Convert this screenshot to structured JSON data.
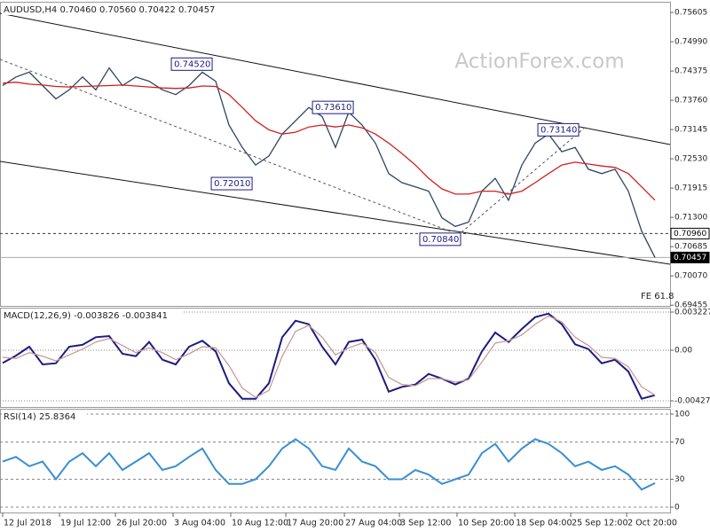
{
  "chart_data": [
    {
      "type": "line",
      "title": "AUDUSD,H4 0.70460 0.70560 0.70422 0.70457",
      "watermark": "ActionForex.com",
      "note": "FE 61.8",
      "xlim": [
        -0.2,
        50.13
      ],
      "ylim": [
        0.6944,
        0.7583
      ],
      "grid": false,
      "yticks": [
        0.75605,
        {
          "value": 0.7499,
          "label": "0.74990"
        },
        0.74375,
        {
          "value": 0.7376,
          "label": "0.73760"
        },
        0.73145,
        {
          "value": 0.7253,
          "label": "0.72530"
        },
        0.71915,
        {
          "value": 0.713,
          "label": "0.71300"
        },
        0.70685,
        {
          "value": 0.7007,
          "label": "0.70070"
        },
        0.69455
      ],
      "x": [
        0,
        1,
        2,
        3,
        4,
        5,
        6,
        7,
        8,
        9,
        10,
        11,
        12,
        13,
        14,
        15,
        16,
        17,
        18,
        19,
        20,
        21,
        22,
        23,
        24,
        25,
        26,
        27,
        28,
        29,
        30,
        31,
        32,
        33,
        34,
        35,
        36,
        37,
        38,
        39,
        40,
        41,
        42,
        43,
        44,
        45,
        46,
        47,
        48,
        49
      ],
      "series": [
        {
          "name": "AUDUSD",
          "color": "#2c4563",
          "values": [
            0.7407,
            0.7425,
            0.7435,
            0.7407,
            0.7379,
            0.7398,
            0.7425,
            0.7398,
            0.7444,
            0.7407,
            0.7425,
            0.7416,
            0.7398,
            0.7388,
            0.7407,
            0.7435,
            0.7416,
            0.7324,
            0.7277,
            0.724,
            0.7259,
            0.7305,
            0.7333,
            0.7361,
            0.7342,
            0.7277,
            0.7351,
            0.7324,
            0.7286,
            0.7222,
            0.7203,
            0.7194,
            0.7185,
            0.7129,
            0.7111,
            0.712,
            0.7185,
            0.7212,
            0.7166,
            0.724,
            0.7286,
            0.7305,
            0.7268,
            0.7277,
            0.7231,
            0.7222,
            0.7231,
            0.7185,
            0.7101,
            0.70457
          ]
        },
        {
          "name": "MA",
          "color": "#d02020",
          "values": [
            0.7412,
            0.7414,
            0.741,
            0.7408,
            0.7405,
            0.7404,
            0.7405,
            0.7406,
            0.7407,
            0.7408,
            0.7406,
            0.7404,
            0.7402,
            0.7401,
            0.7402,
            0.7406,
            0.7405,
            0.7388,
            0.7361,
            0.7333,
            0.7314,
            0.7305,
            0.7309,
            0.732,
            0.7324,
            0.732,
            0.7324,
            0.7318,
            0.7305,
            0.7286,
            0.7264,
            0.724,
            0.7212,
            0.719,
            0.7179,
            0.7179,
            0.7185,
            0.7185,
            0.7179,
            0.7185,
            0.7203,
            0.7222,
            0.724,
            0.7246,
            0.7242,
            0.7238,
            0.7235,
            0.7222,
            0.7194,
            0.7166
          ]
        }
      ],
      "annotations": [
        {
          "value": 0.7452,
          "label": "0.74520",
          "x": 12.67
        },
        {
          "value": 0.7201,
          "label": "0.72010",
          "x": 15.67
        },
        {
          "value": 0.7361,
          "label": "0.73610",
          "x": 23.27
        },
        {
          "value": 0.7084,
          "label": "0.70840",
          "x": 31.33
        },
        {
          "value": 0.7314,
          "label": "0.73140",
          "x": 40.2
        }
      ],
      "level_lines": [
        {
          "value": 0.7096,
          "label": "0.70960",
          "style": "dashed"
        },
        {
          "value": 0.70457,
          "label": "0.70457",
          "style": "solid"
        }
      ]
    },
    {
      "type": "line",
      "title": "MACD(12,26,9) -0.003826 -0.003841",
      "xlim": [
        -0.2,
        50.13
      ],
      "ylim": [
        -0.0048,
        0.0036
      ],
      "grid": "dotted",
      "yticks": [
        0.003227,
        {
          "value": 0,
          "label": "0.00"
        },
        -0.004279
      ],
      "x": [
        0,
        1,
        2,
        3,
        4,
        5,
        6,
        7,
        8,
        9,
        10,
        11,
        12,
        13,
        14,
        15,
        16,
        17,
        18,
        19,
        20,
        21,
        22,
        23,
        24,
        25,
        26,
        27,
        28,
        29,
        30,
        31,
        32,
        33,
        34,
        35,
        36,
        37,
        38,
        39,
        40,
        41,
        42,
        43,
        44,
        45,
        46,
        47,
        48,
        49
      ],
      "series": [
        {
          "name": "MACD",
          "color": "#1c1c80",
          "values": [
            -0.00108,
            -0.00046,
            0.0003,
            -0.0012,
            -0.0011,
            0.0003,
            0.00046,
            0.0011,
            0.0012,
            -0.0003,
            -0.0005,
            0.0007,
            -0.0008,
            -0.0012,
            0.0003,
            0.0008,
            -0.0001,
            -0.0028,
            -0.0041,
            -0.0041,
            -0.0028,
            0.0011,
            0.0025,
            0.0022,
            0.0003,
            -0.0012,
            0.0007,
            0.0009,
            -0.0008,
            -0.0035,
            -0.0031,
            -0.0029,
            -0.002,
            -0.0024,
            -0.0029,
            -0.0024,
            -0.0001,
            0.0015,
            0.0007,
            0.0018,
            0.0028,
            0.0031,
            0.0022,
            0.0005,
            0.0001,
            -0.0011,
            -0.0008,
            -0.0018,
            -0.0041,
            -0.0038
          ]
        },
        {
          "name": "Signal",
          "color": "#c89a9a",
          "values": [
            -0.0006,
            -0.0007,
            -0.0002,
            -0.0005,
            -0.0009,
            -0.0004,
            0.0001,
            0.0007,
            0.001,
            0.0004,
            -0.0002,
            0.0002,
            -0.0002,
            -0.0008,
            -0.0003,
            0.0003,
            0.0002,
            -0.0013,
            -0.0032,
            -0.004,
            -0.0034,
            -0.0005,
            0.0016,
            0.0021,
            0.0011,
            -0.0004,
            0.0002,
            0.0006,
            -0.0002,
            -0.0023,
            -0.0029,
            -0.003,
            -0.0024,
            -0.0024,
            -0.0027,
            -0.0025,
            -0.001,
            0.0006,
            0.0008,
            0.0013,
            0.0022,
            0.0029,
            0.0024,
            0.0011,
            0.0004,
            -0.0006,
            -0.0007,
            -0.0014,
            -0.0031,
            -0.0038
          ]
        }
      ]
    },
    {
      "type": "line",
      "title": "RSI(14) 25.8364",
      "xlim": [
        -0.2,
        50.13
      ],
      "ylim": [
        -5.7,
        105.7
      ],
      "grid": "dashed",
      "yticks": [
        100,
        70,
        30,
        0
      ],
      "xticks": [
        {
          "value": 0,
          "label": "12 Jul 2018"
        },
        {
          "value": 4.27,
          "label": "19 Jul 12:00"
        },
        {
          "value": 8.47,
          "label": "26 Jul 20:00"
        },
        {
          "value": 12.8,
          "label": "3 Aug 04:00"
        },
        {
          "value": 17.13,
          "label": "10 Aug 12:00"
        },
        {
          "value": 21.27,
          "label": "17 Aug 20:00"
        },
        {
          "value": 25.67,
          "label": "27 Aug 04:00"
        },
        {
          "value": 29.8,
          "label": "3 Sep 12:00"
        },
        {
          "value": 34.13,
          "label": "10 Sep 20:00"
        },
        {
          "value": 38.47,
          "label": "18 Sep 04:00"
        },
        {
          "value": 42.67,
          "label": "25 Sep 12:00"
        },
        {
          "value": 46.87,
          "label": "2 Oct 20:00"
        }
      ],
      "x": [
        0,
        1,
        2,
        3,
        4,
        5,
        6,
        7,
        8,
        9,
        10,
        11,
        12,
        13,
        14,
        15,
        16,
        17,
        18,
        19,
        20,
        21,
        22,
        23,
        24,
        25,
        26,
        27,
        28,
        29,
        30,
        31,
        32,
        33,
        34,
        35,
        36,
        37,
        38,
        39,
        40,
        41,
        42,
        43,
        44,
        45,
        46,
        47,
        48,
        49
      ],
      "series": [
        {
          "name": "RSI",
          "color": "#3a8fd0",
          "values": [
            49,
            54,
            44,
            49,
            30,
            49,
            58,
            44,
            58,
            40,
            49,
            58,
            40,
            44,
            54,
            63,
            40,
            25,
            25,
            30,
            44,
            63,
            73,
            63,
            44,
            40,
            63,
            49,
            44,
            30,
            30,
            40,
            35,
            25,
            30,
            35,
            58,
            68,
            49,
            63,
            73,
            68,
            58,
            44,
            49,
            40,
            44,
            35,
            19,
            25.8364
          ]
        }
      ]
    }
  ]
}
